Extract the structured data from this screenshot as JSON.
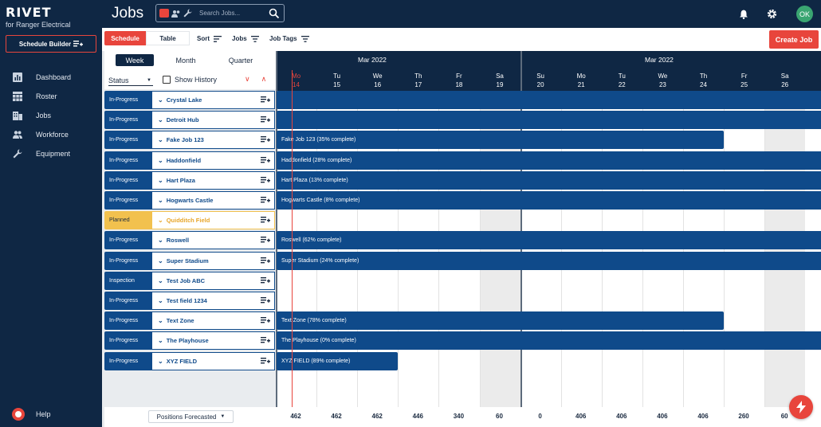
{
  "brand": {
    "logo": "RIVET",
    "subtitle": "for Ranger Electrical"
  },
  "sidebar": {
    "schedule_builder_label": "Schedule Builder",
    "items": [
      {
        "label": "Dashboard",
        "icon": "chart-icon"
      },
      {
        "label": "Roster",
        "icon": "table-icon"
      },
      {
        "label": "Jobs",
        "icon": "building-icon"
      },
      {
        "label": "Workforce",
        "icon": "people-icon"
      },
      {
        "label": "Equipment",
        "icon": "wrench-icon"
      }
    ],
    "help_label": "Help"
  },
  "header": {
    "title": "Jobs",
    "search_placeholder": "Search Jobs...",
    "avatar_initials": "OK"
  },
  "toolbar": {
    "schedule_label": "Schedule",
    "table_label": "Table",
    "sort_label": "Sort",
    "jobs_label": "Jobs",
    "job_tags_label": "Job Tags",
    "create_job_label": "Create Job"
  },
  "panel": {
    "week_label": "Week",
    "month_label": "Month",
    "quarter_label": "Quarter",
    "status_label": "Status",
    "show_history_label": "Show History"
  },
  "timeline": {
    "months": [
      "Mar 2022",
      "Mar 2022"
    ],
    "days": [
      {
        "dow": "Mo",
        "date": "14",
        "today": true
      },
      {
        "dow": "Tu",
        "date": "15"
      },
      {
        "dow": "We",
        "date": "16"
      },
      {
        "dow": "Th",
        "date": "17"
      },
      {
        "dow": "Fr",
        "date": "18"
      },
      {
        "dow": "Sa",
        "date": "19"
      },
      {
        "dow": "Su",
        "date": "20"
      },
      {
        "dow": "Mo",
        "date": "21"
      },
      {
        "dow": "Tu",
        "date": "22"
      },
      {
        "dow": "We",
        "date": "23"
      },
      {
        "dow": "Th",
        "date": "24"
      },
      {
        "dow": "Fr",
        "date": "25"
      },
      {
        "dow": "Sa",
        "date": "26"
      }
    ]
  },
  "jobs": [
    {
      "status": "In-Progress",
      "name": "Crystal Lake",
      "bar_label": "",
      "end_day": 13
    },
    {
      "status": "In-Progress",
      "name": "Detroit Hub",
      "bar_label": "",
      "end_day": 13
    },
    {
      "status": "In-Progress",
      "name": "Fake Job 123",
      "bar_label": "Fake Job 123 (35% complete)",
      "end_day": 11
    },
    {
      "status": "In-Progress",
      "name": "Haddonfield",
      "bar_label": "Haddonfield (28% complete)",
      "end_day": 13
    },
    {
      "status": "In-Progress",
      "name": "Hart Plaza",
      "bar_label": "Hart Plaza (13% complete)",
      "end_day": 13
    },
    {
      "status": "In-Progress",
      "name": "Hogwarts Castle",
      "bar_label": "Hogwarts Castle (8% complete)",
      "end_day": 13
    },
    {
      "status": "Planned",
      "name": "Quidditch Field",
      "bar_label": "",
      "end_day": 0
    },
    {
      "status": "In-Progress",
      "name": "Roswell",
      "bar_label": "Roswell (62% complete)",
      "end_day": 13
    },
    {
      "status": "In-Progress",
      "name": "Super Stadium",
      "bar_label": "Super Stadium (24% complete)",
      "end_day": 13
    },
    {
      "status": "Inspection",
      "name": "Test Job ABC",
      "bar_label": "",
      "end_day": 0
    },
    {
      "status": "In-Progress",
      "name": "Test field 1234",
      "bar_label": "",
      "end_day": 0
    },
    {
      "status": "In-Progress",
      "name": "Text Zone",
      "bar_label": "Text Zone (78% complete)",
      "end_day": 11
    },
    {
      "status": "In-Progress",
      "name": "The Playhouse",
      "bar_label": "The Playhouse (0% complete)",
      "end_day": 13
    },
    {
      "status": "In-Progress",
      "name": "XYZ FIELD",
      "bar_label": "XYZ FIELD (89% complete)",
      "end_day": 3
    }
  ],
  "footer": {
    "positions_label": "Positions Forecasted",
    "totals": [
      "462",
      "462",
      "462",
      "446",
      "340",
      "60",
      "0",
      "406",
      "406",
      "406",
      "406",
      "260",
      "60"
    ]
  },
  "colors": {
    "navy": "#0f2744",
    "accent": "#e8453c",
    "bar": "#0f4a8a",
    "planned": "#f2c14e"
  }
}
